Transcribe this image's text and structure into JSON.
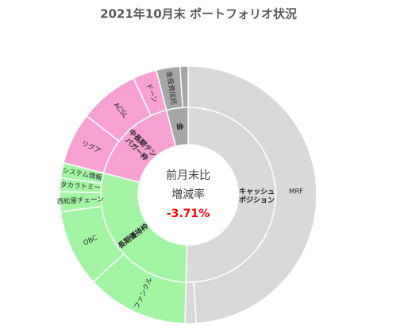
{
  "chart_data": {
    "type": "sunburst",
    "title": "2021年10月末 ポートフォリオ状況",
    "annotations": [
      "前月末比",
      "増減率",
      "-3.71%"
    ],
    "categories": [
      "キャッシュポジション",
      "長期優待枠",
      "中長期テンバガー枠",
      "金"
    ],
    "values": [
      50.4,
      28.6,
      17,
      4
    ],
    "colors": [
      "#d9d9d9",
      "#a3f5a3",
      "#f7a1d2",
      "#a6a6a6"
    ],
    "children": [
      {
        "categories": [
          "MRF",
          null
        ],
        "values": [
          49,
          1.4
        ]
      },
      {
        "categories": [
          "ファンクル",
          "OBC",
          "西松屋チェーン",
          "タカラトミー",
          "システム情報"
        ],
        "values": [
          12.8,
          9.7,
          2.5,
          1.7,
          1.9
        ]
      },
      {
        "categories": [
          "リグア",
          "ACSL",
          "ドーン"
        ],
        "values": [
          6.5,
          7.5,
          3
        ]
      },
      {
        "categories": [
          "金投資信託",
          null
        ],
        "values": [
          3,
          1
        ]
      }
    ]
  }
}
